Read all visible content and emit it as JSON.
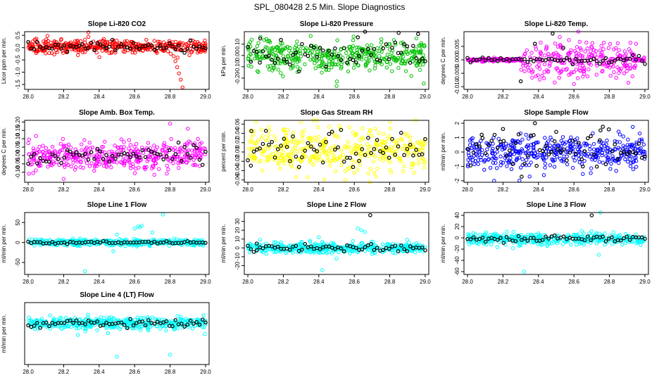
{
  "figure": {
    "title": "SPL_080428  2.5 Min. Slope Diagnostics"
  },
  "chart_data": [
    {
      "id": "co2",
      "type": "scatter",
      "title": "Slope Li-820 CO2",
      "ylabel": "Licor ppm per min.",
      "xlim": [
        27.98,
        29.02
      ],
      "ylim": [
        -1.7,
        0.65
      ],
      "xticks": [
        28.0,
        28.2,
        28.4,
        28.6,
        28.8,
        29.0
      ],
      "yticks": [
        -1.5,
        -1.0,
        -0.5,
        0.0,
        0.5
      ],
      "ytick_labels": [
        "-1.5",
        "-1.0",
        "-0.5",
        "0.0",
        "0.5"
      ],
      "color": "#ff0000",
      "center": 0.05,
      "spread": 0.13,
      "black_spread": 0.09,
      "outliers": [
        [
          28.34,
          0.62
        ],
        [
          28.82,
          -0.35
        ],
        [
          28.83,
          -0.55
        ],
        [
          28.84,
          -0.8
        ],
        [
          28.85,
          -1.05
        ],
        [
          28.86,
          -1.3
        ],
        [
          28.87,
          -1.62
        ]
      ],
      "black_outliers": []
    },
    {
      "id": "pres",
      "type": "scatter",
      "title": "Slope Li-820 Pressure",
      "ylabel": "kPa per min.",
      "xlim": [
        27.98,
        29.02
      ],
      "ylim": [
        -0.3,
        0.21
      ],
      "xticks": [
        28.0,
        28.2,
        28.4,
        28.6,
        28.8,
        29.0
      ],
      "yticks": [
        -0.2,
        -0.1,
        0.0,
        0.1
      ],
      "ytick_labels": [
        "-0.20",
        "-0.10",
        "0.00",
        "0.10"
      ],
      "color": "#00c000",
      "center": 0.0,
      "spread": 0.07,
      "black_spread": 0.07,
      "outliers": [
        [
          28.5,
          -0.27
        ],
        [
          28.12,
          0.13
        ],
        [
          28.95,
          0.15
        ]
      ],
      "black_outliers": [
        [
          28.07,
          0.15
        ],
        [
          28.85,
          0.2
        ],
        [
          28.96,
          0.19
        ],
        [
          28.62,
          0.16
        ]
      ]
    },
    {
      "id": "temp",
      "type": "scatter",
      "title": "Slope Li-820 Temp.",
      "ylabel": "degrees C per min.",
      "xlim": [
        27.98,
        29.02
      ],
      "ylim": [
        -0.011,
        0.0105
      ],
      "xticks": [
        28.0,
        28.2,
        28.4,
        28.6,
        28.8,
        29.0
      ],
      "yticks": [
        -0.01,
        -0.005,
        0.0,
        0.005
      ],
      "ytick_labels": [
        "-0.010",
        "-0.005",
        "0.000",
        "0.005"
      ],
      "color": "#ff00ff",
      "center": 0.0,
      "spread": 0.0035,
      "black_spread": 0.0006,
      "outliers": [
        [
          28.52,
          0.0085
        ],
        [
          28.6,
          -0.009
        ],
        [
          28.95,
          0.006
        ]
      ],
      "black_outliers": [
        [
          28.48,
          0.0098
        ],
        [
          28.38,
          0.006
        ],
        [
          28.54,
          0.0045
        ],
        [
          28.3,
          -0.008
        ]
      ]
    },
    {
      "id": "box",
      "type": "scatter",
      "title": "Slope Amb. Box Temp.",
      "ylabel": "degrees C per min.",
      "xlim": [
        27.98,
        29.02
      ],
      "ylim": [
        -0.16,
        0.21
      ],
      "xticks": [
        28.0,
        28.2,
        28.4,
        28.6,
        28.8,
        29.0
      ],
      "yticks": [
        -0.1,
        -0.05,
        0.0,
        0.05,
        0.1,
        0.15,
        0.2
      ],
      "ytick_labels": [
        "-0.10",
        "-0.05",
        "0.00",
        "0.05",
        "0.10",
        "0.15",
        "0.20"
      ],
      "color": "#ff00ff",
      "center": 0.0,
      "spread": 0.045,
      "black_spread": 0.03,
      "outliers": [
        [
          28.8,
          0.19
        ],
        [
          28.2,
          -0.14
        ],
        [
          28.9,
          0.16
        ]
      ],
      "black_outliers": []
    },
    {
      "id": "rh",
      "type": "scatter",
      "title": "Slope Gas Stream RH",
      "ylabel": "percent per min.",
      "xlim": [
        27.98,
        29.02
      ],
      "ylim": [
        -0.065,
        0.068
      ],
      "xticks": [
        28.0,
        28.2,
        28.4,
        28.6,
        28.8,
        29.0
      ],
      "yticks": [
        -0.06,
        -0.04,
        -0.02,
        0.0,
        0.02,
        0.04,
        0.06
      ],
      "ytick_labels": [
        "-0.06",
        "-0.04",
        "-0.02",
        "0.00",
        "0.02",
        "0.04",
        "0.06"
      ],
      "color": "#ffff00",
      "center": 0.005,
      "spread": 0.022,
      "black_spread": 0.02,
      "outliers": [
        [
          28.8,
          0.065
        ],
        [
          28.55,
          -0.06
        ]
      ],
      "black_outliers": [
        [
          28.02,
          0.045
        ]
      ]
    },
    {
      "id": "samp",
      "type": "scatter",
      "title": "Slope Sample Flow",
      "ylabel": "ml/min per min.",
      "xlim": [
        27.98,
        29.02
      ],
      "ylim": [
        -2.1,
        2.2
      ],
      "xticks": [
        28.0,
        28.2,
        28.4,
        28.6,
        28.8,
        29.0
      ],
      "yticks": [
        -2,
        -1,
        0,
        1,
        2
      ],
      "ytick_labels": [
        "-2",
        "-1",
        "0",
        "1",
        "2"
      ],
      "color": "#0000ff",
      "center": 0.0,
      "spread": 0.55,
      "black_spread": 0.7,
      "outliers": [
        [
          28.15,
          -2.0
        ],
        [
          28.35,
          -1.7
        ]
      ],
      "black_outliers": [
        [
          28.2,
          1.6
        ],
        [
          28.38,
          2.0
        ],
        [
          28.5,
          1.4
        ],
        [
          28.75,
          1.5
        ],
        [
          28.08,
          1.2
        ],
        [
          28.65,
          -1.0
        ]
      ]
    },
    {
      "id": "l1",
      "type": "scatter",
      "title": "Slope Line 1 Flow",
      "ylabel": "ml/min per min.",
      "xlim": [
        27.98,
        29.02
      ],
      "ylim": [
        -80,
        75
      ],
      "xticks": [
        28.0,
        28.2,
        28.4,
        28.6,
        28.8,
        29.0
      ],
      "yticks": [
        -50,
        0,
        50
      ],
      "ytick_labels": [
        "-50",
        "0",
        "50"
      ],
      "color": "#00ffff",
      "center": 0.0,
      "spread": 4.0,
      "black_spread": 1.5,
      "outliers": [
        [
          28.32,
          -72
        ],
        [
          28.76,
          70
        ],
        [
          28.62,
          40
        ],
        [
          28.63,
          38
        ],
        [
          28.64,
          42
        ],
        [
          28.6,
          35
        ],
        [
          28.5,
          20
        ],
        [
          28.48,
          -22
        ],
        [
          28.7,
          25
        ]
      ],
      "black_outliers": []
    },
    {
      "id": "l2",
      "type": "scatter",
      "title": "Slope Line 2 Flow",
      "ylabel": "ml/min per min.",
      "xlim": [
        27.98,
        29.02
      ],
      "ylim": [
        -30,
        40
      ],
      "xticks": [
        28.0,
        28.2,
        28.4,
        28.6,
        28.8,
        29.0
      ],
      "yticks": [
        -20,
        -10,
        0,
        10,
        20,
        30
      ],
      "ytick_labels": [
        "-20",
        "-10",
        "0",
        "10",
        "20",
        "30"
      ],
      "color": "#00ffff",
      "center": 0.0,
      "spread": 3.0,
      "black_spread": 2.0,
      "outliers": [
        [
          28.4,
          12
        ],
        [
          28.42,
          -25
        ],
        [
          28.62,
          22
        ],
        [
          28.64,
          20
        ],
        [
          28.66,
          18
        ],
        [
          28.5,
          -12
        ],
        [
          28.35,
          8
        ]
      ],
      "black_outliers": [
        [
          28.69,
          37
        ],
        [
          28.05,
          5
        ]
      ]
    },
    {
      "id": "l3",
      "type": "scatter",
      "title": "Slope Line 3 Flow",
      "ylabel": "ml/min per min.",
      "xlim": [
        27.98,
        29.02
      ],
      "ylim": [
        -65,
        45
      ],
      "xticks": [
        28.0,
        28.2,
        28.4,
        28.6,
        28.8,
        29.0
      ],
      "yticks": [
        -60,
        -40,
        -20,
        0,
        20,
        40
      ],
      "ytick_labels": [
        "-60",
        "-40",
        "-20",
        "0",
        "20",
        "40"
      ],
      "color": "#00ffff",
      "center": -2.0,
      "spread": 5.0,
      "black_spread": 3.0,
      "outliers": [
        [
          28.32,
          -60
        ],
        [
          28.75,
          45
        ],
        [
          28.74,
          -30
        ],
        [
          28.3,
          5
        ],
        [
          28.4,
          8
        ],
        [
          28.7,
          12
        ]
      ],
      "black_outliers": [
        [
          28.7,
          40
        ]
      ]
    },
    {
      "id": "l4",
      "type": "scatter",
      "title": "Slope Line 4 (LT) Flow",
      "ylabel": "ml/min per min.",
      "xlim": [
        27.98,
        29.02
      ],
      "ylim": [
        -2.1,
        1.05
      ],
      "xticks": [
        28.0,
        28.2,
        28.4,
        28.6,
        28.8,
        29.0
      ],
      "yticks": [],
      "ytick_labels": [],
      "color": "#00ffff",
      "center": 0.0,
      "spread": 0.15,
      "black_spread": 0.1,
      "outliers": [
        [
          28.28,
          -0.6
        ],
        [
          28.5,
          -1.7
        ],
        [
          28.8,
          -1.6
        ],
        [
          28.45,
          -0.5
        ],
        [
          28.7,
          0.3
        ]
      ],
      "black_outliers": []
    }
  ]
}
